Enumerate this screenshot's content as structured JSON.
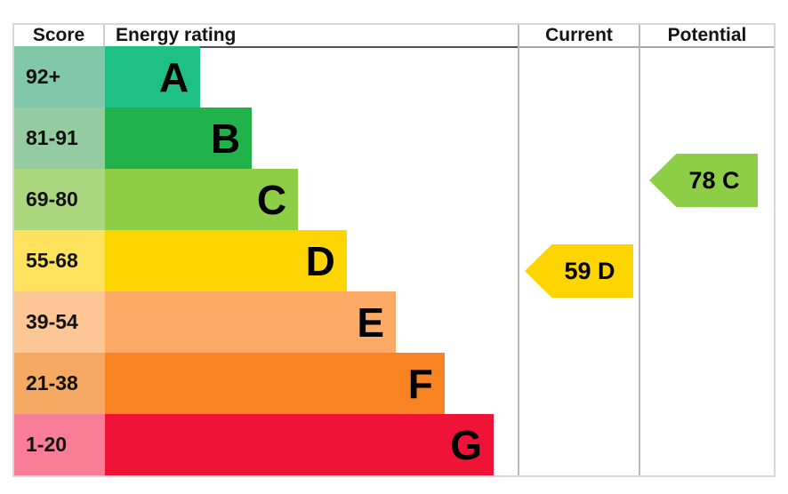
{
  "header": {
    "score": "Score",
    "rating": "Energy rating",
    "current": "Current",
    "potential": "Potential"
  },
  "bands": [
    {
      "letter": "A",
      "score": "92+",
      "color": "#1ec087",
      "tint": "#80c8a7",
      "width": "23.1%"
    },
    {
      "letter": "B",
      "score": "81-91",
      "color": "#21b24b",
      "tint": "#94cba1",
      "width": "35.6%"
    },
    {
      "letter": "C",
      "score": "69-80",
      "color": "#8dce46",
      "tint": "#abd77f",
      "width": "46.8%"
    },
    {
      "letter": "D",
      "score": "55-68",
      "color": "#ffd500",
      "tint": "#ffe25d",
      "width": "58.6%"
    },
    {
      "letter": "E",
      "score": "39-54",
      "color": "#fcaa65",
      "tint": "#fcc795",
      "width": "70.5%"
    },
    {
      "letter": "F",
      "score": "21-38",
      "color": "#f78323",
      "tint": "#f6a963",
      "width": "82.3%"
    },
    {
      "letter": "G",
      "score": "1-20",
      "color": "#ef1338",
      "tint": "#f87d96",
      "width": "94.2%"
    }
  ],
  "current": {
    "label": "59 D",
    "value": 59,
    "band": "D",
    "color": "#ffd500"
  },
  "potential": {
    "label": "78 C",
    "value": 78,
    "band": "C",
    "color": "#8dce46"
  },
  "chart_data": {
    "type": "bar",
    "orientation": "horizontal",
    "title": "Energy rating (EPC)",
    "columns": [
      "Score",
      "Energy rating",
      "Current",
      "Potential"
    ],
    "categories": [
      "A",
      "B",
      "C",
      "D",
      "E",
      "F",
      "G"
    ],
    "score_ranges": [
      "92+",
      "81-91",
      "69-80",
      "55-68",
      "39-54",
      "21-38",
      "1-20"
    ],
    "band_colors": [
      "#1ec087",
      "#21b24b",
      "#8dce46",
      "#ffd500",
      "#fcaa65",
      "#f78323",
      "#ef1338"
    ],
    "bar_lengths_relative": [
      0.23,
      0.36,
      0.47,
      0.59,
      0.7,
      0.82,
      0.94
    ],
    "current": {
      "score": 59,
      "band": "D",
      "column": "Current",
      "color": "#ffd500"
    },
    "potential": {
      "score": 78,
      "band": "C",
      "column": "Potential",
      "color": "#8dce46"
    },
    "legend_position": "none",
    "grid": false
  }
}
